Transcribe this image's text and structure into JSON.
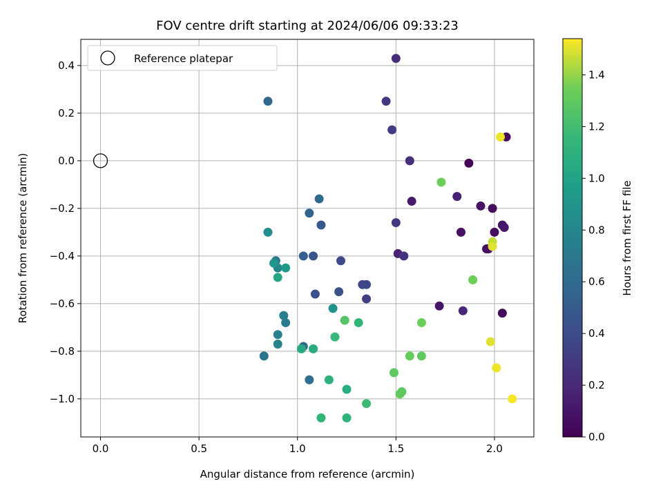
{
  "chart_data": {
    "type": "scatter",
    "title": "FOV centre drift starting at 2024/06/06 09:33:23",
    "xlabel": "Angular distance from reference (arcmin)",
    "ylabel": "Rotation from reference (arcmin)",
    "xlim": [
      -0.1,
      2.2
    ],
    "ylim": [
      -1.16,
      0.51
    ],
    "xticks": [
      0.0,
      0.5,
      1.0,
      1.5,
      2.0
    ],
    "xtick_labels": [
      "0.0",
      "0.5",
      "1.0",
      "1.5",
      "2.0"
    ],
    "yticks": [
      -1.0,
      -0.8,
      -0.6,
      -0.4,
      -0.2,
      0.0,
      0.2,
      0.4
    ],
    "ytick_labels": [
      "−1.0",
      "−0.8",
      "−0.6",
      "−0.4",
      "−0.2",
      "0.0",
      "0.2",
      "0.4"
    ],
    "grid": true,
    "legend": {
      "position": "upper-left",
      "entries": [
        {
          "label": "Reference platepar",
          "marker": "open-circle",
          "x": 0.0,
          "y": 0.0
        }
      ]
    },
    "colorbar": {
      "label": "Hours from first FF file",
      "colormap": "viridis",
      "range": [
        0.0,
        1.54
      ],
      "ticks": [
        0.0,
        0.2,
        0.4,
        0.6,
        0.8,
        1.0,
        1.2,
        1.4
      ],
      "tick_labels": [
        "0.0",
        "0.2",
        "0.4",
        "0.6",
        "0.8",
        "1.0",
        "1.2",
        "1.4"
      ]
    },
    "points": [
      {
        "x": 1.87,
        "y": -0.01,
        "c": 0.02
      },
      {
        "x": 2.06,
        "y": 0.1,
        "c": 0.05
      },
      {
        "x": 1.99,
        "y": -0.2,
        "c": 0.06
      },
      {
        "x": 2.0,
        "y": -0.3,
        "c": 0.06
      },
      {
        "x": 1.96,
        "y": -0.37,
        "c": 0.07
      },
      {
        "x": 1.97,
        "y": -0.37,
        "c": 0.08
      },
      {
        "x": 1.83,
        "y": -0.3,
        "c": 0.08
      },
      {
        "x": 1.93,
        "y": -0.19,
        "c": 0.09
      },
      {
        "x": 2.04,
        "y": -0.27,
        "c": 0.1
      },
      {
        "x": 2.05,
        "y": -0.28,
        "c": 0.12
      },
      {
        "x": 2.04,
        "y": -0.64,
        "c": 0.05
      },
      {
        "x": 1.72,
        "y": -0.61,
        "c": 0.1
      },
      {
        "x": 1.58,
        "y": -0.17,
        "c": 0.13
      },
      {
        "x": 1.81,
        "y": -0.15,
        "c": 0.16
      },
      {
        "x": 1.51,
        "y": -0.39,
        "c": 0.17
      },
      {
        "x": 1.84,
        "y": -0.63,
        "c": 0.2
      },
      {
        "x": 1.5,
        "y": 0.43,
        "c": 0.22
      },
      {
        "x": 1.57,
        "y": 0.0,
        "c": 0.24
      },
      {
        "x": 1.54,
        "y": -0.4,
        "c": 0.26
      },
      {
        "x": 1.5,
        "y": -0.26,
        "c": 0.28
      },
      {
        "x": 1.48,
        "y": 0.13,
        "c": 0.31
      },
      {
        "x": 1.45,
        "y": 0.25,
        "c": 0.3
      },
      {
        "x": 1.35,
        "y": -0.58,
        "c": 0.32
      },
      {
        "x": 1.33,
        "y": -0.52,
        "c": 0.36
      },
      {
        "x": 1.35,
        "y": -0.52,
        "c": 0.38
      },
      {
        "x": 1.22,
        "y": -0.42,
        "c": 0.4
      },
      {
        "x": 1.21,
        "y": -0.55,
        "c": 0.44
      },
      {
        "x": 1.09,
        "y": -0.56,
        "c": 0.43
      },
      {
        "x": 1.08,
        "y": -0.4,
        "c": 0.46
      },
      {
        "x": 1.12,
        "y": -0.27,
        "c": 0.49
      },
      {
        "x": 1.03,
        "y": -0.4,
        "c": 0.52
      },
      {
        "x": 1.06,
        "y": -0.22,
        "c": 0.55
      },
      {
        "x": 1.11,
        "y": -0.16,
        "c": 0.58
      },
      {
        "x": 0.85,
        "y": 0.25,
        "c": 0.57
      },
      {
        "x": 1.03,
        "y": -0.78,
        "c": 0.6
      },
      {
        "x": 1.06,
        "y": -0.92,
        "c": 0.62
      },
      {
        "x": 0.83,
        "y": -0.82,
        "c": 0.66
      },
      {
        "x": 0.89,
        "y": -0.42,
        "c": 0.7
      },
      {
        "x": 0.94,
        "y": -0.68,
        "c": 0.72
      },
      {
        "x": 0.93,
        "y": -0.65,
        "c": 0.74
      },
      {
        "x": 0.9,
        "y": -0.73,
        "c": 0.76
      },
      {
        "x": 0.9,
        "y": -0.77,
        "c": 0.78
      },
      {
        "x": 0.9,
        "y": -0.45,
        "c": 0.8
      },
      {
        "x": 0.85,
        "y": -0.3,
        "c": 0.84
      },
      {
        "x": 0.88,
        "y": -0.43,
        "c": 0.9
      },
      {
        "x": 0.94,
        "y": -0.45,
        "c": 0.94
      },
      {
        "x": 1.18,
        "y": -0.62,
        "c": 0.88
      },
      {
        "x": 0.9,
        "y": -0.49,
        "c": 1.02
      },
      {
        "x": 1.02,
        "y": -0.79,
        "c": 1.04
      },
      {
        "x": 1.08,
        "y": -0.79,
        "c": 1.06
      },
      {
        "x": 1.25,
        "y": -0.96,
        "c": 1.08
      },
      {
        "x": 1.16,
        "y": -0.92,
        "c": 1.1
      },
      {
        "x": 1.25,
        "y": -1.08,
        "c": 1.12
      },
      {
        "x": 1.12,
        "y": -1.08,
        "c": 1.14
      },
      {
        "x": 1.31,
        "y": -0.68,
        "c": 1.14
      },
      {
        "x": 1.19,
        "y": -0.74,
        "c": 1.16
      },
      {
        "x": 1.35,
        "y": -1.02,
        "c": 1.18
      },
      {
        "x": 1.24,
        "y": -0.67,
        "c": 1.26
      },
      {
        "x": 1.49,
        "y": -0.89,
        "c": 1.3
      },
      {
        "x": 1.52,
        "y": -0.98,
        "c": 1.32
      },
      {
        "x": 1.53,
        "y": -0.97,
        "c": 1.3
      },
      {
        "x": 1.57,
        "y": -0.82,
        "c": 1.32
      },
      {
        "x": 1.63,
        "y": -0.82,
        "c": 1.3
      },
      {
        "x": 1.63,
        "y": -0.68,
        "c": 1.34
      },
      {
        "x": 1.73,
        "y": -0.09,
        "c": 1.34
      },
      {
        "x": 1.89,
        "y": -0.5,
        "c": 1.34
      },
      {
        "x": 1.99,
        "y": -0.34,
        "c": 1.46
      },
      {
        "x": 1.99,
        "y": -0.36,
        "c": 1.5
      },
      {
        "x": 2.03,
        "y": 0.1,
        "c": 1.52
      },
      {
        "x": 1.98,
        "y": -0.76,
        "c": 1.5
      },
      {
        "x": 2.01,
        "y": -0.87,
        "c": 1.52
      },
      {
        "x": 2.09,
        "y": -1.0,
        "c": 1.53
      }
    ]
  }
}
